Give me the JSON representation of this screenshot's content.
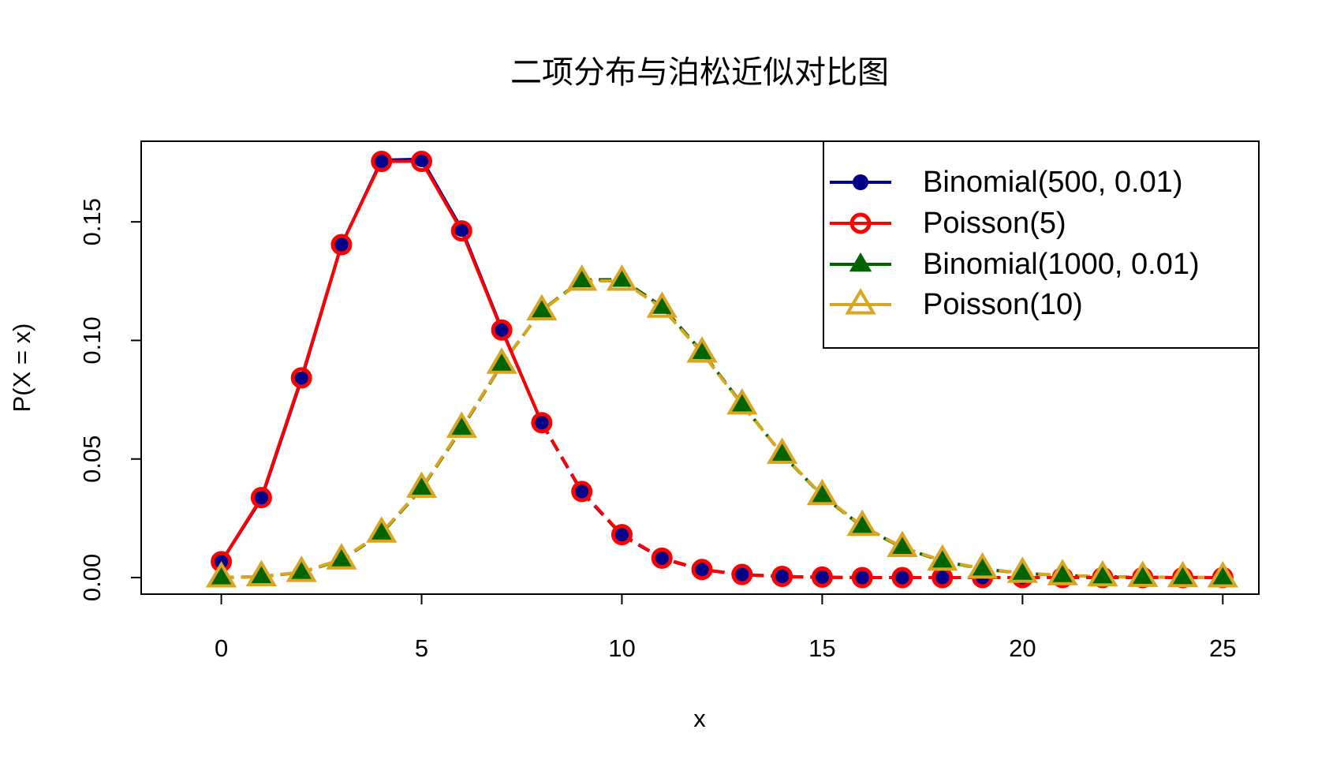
{
  "chart_data": {
    "type": "line",
    "title": "二项分布与泊松近似对比图",
    "xlabel": "x",
    "ylabel": "P(X = x)",
    "xlim": [
      -2,
      25.9
    ],
    "ylim": [
      -0.007,
      0.184
    ],
    "xticks": [
      "0",
      "5",
      "10",
      "15",
      "20",
      "25"
    ],
    "yticks": [
      "0.00",
      "0.05",
      "0.10",
      "0.15"
    ],
    "grid": false,
    "legend_position": "top-right",
    "x": [
      0,
      1,
      2,
      3,
      4,
      5,
      6,
      7,
      8,
      9,
      10,
      11,
      12,
      13,
      14,
      15,
      16,
      17,
      18,
      19,
      20,
      21,
      22,
      23,
      24,
      25
    ],
    "series": [
      {
        "name": "Binomial(500, 0.01)",
        "color": "#00008B",
        "marker": "filled-circle",
        "line": "solid-to-x8-then-dashed",
        "values": [
          0.0066,
          0.0332,
          0.0836,
          0.1402,
          0.176,
          0.1764,
          0.147,
          0.1048,
          0.0652,
          0.036,
          0.0179,
          0.008,
          0.0033,
          0.0013,
          0.0004,
          0.0001,
          0.0,
          0.0,
          0.0,
          0.0,
          0.0,
          0.0,
          0.0,
          0.0,
          0.0,
          0.0
        ]
      },
      {
        "name": "Poisson(5)",
        "color": "#FF0000",
        "marker": "open-circle",
        "line": "solid-to-x8-then-dashed",
        "values": [
          0.0067,
          0.0337,
          0.0842,
          0.1404,
          0.1755,
          0.1755,
          0.1462,
          0.1044,
          0.0653,
          0.0363,
          0.0181,
          0.0082,
          0.0034,
          0.0013,
          0.0005,
          0.0002,
          0.0,
          0.0,
          0.0,
          0.0,
          0.0,
          0.0,
          0.0,
          0.0,
          0.0,
          0.0
        ]
      },
      {
        "name": "Binomial(1000, 0.01)",
        "color": "#006400",
        "marker": "filled-triangle",
        "line": "dashed",
        "values": [
          0.0,
          0.0004,
          0.0022,
          0.0074,
          0.0186,
          0.0375,
          0.0627,
          0.0899,
          0.1127,
          0.1255,
          0.1257,
          0.1143,
          0.0952,
          0.0731,
          0.052,
          0.0345,
          0.0215,
          0.0126,
          0.0069,
          0.0036,
          0.0018,
          0.0009,
          0.0004,
          0.0002,
          0.0001,
          0.0
        ]
      },
      {
        "name": "Poisson(10)",
        "color": "#DAA520",
        "marker": "open-triangle",
        "line": "dashed",
        "values": [
          0.0,
          0.0005,
          0.0023,
          0.0076,
          0.0189,
          0.0378,
          0.0631,
          0.0901,
          0.1126,
          0.1251,
          0.1251,
          0.1137,
          0.0948,
          0.0729,
          0.0521,
          0.0347,
          0.0217,
          0.0128,
          0.0071,
          0.0037,
          0.0019,
          0.0009,
          0.0004,
          0.0002,
          0.0001,
          0.0
        ]
      }
    ]
  }
}
